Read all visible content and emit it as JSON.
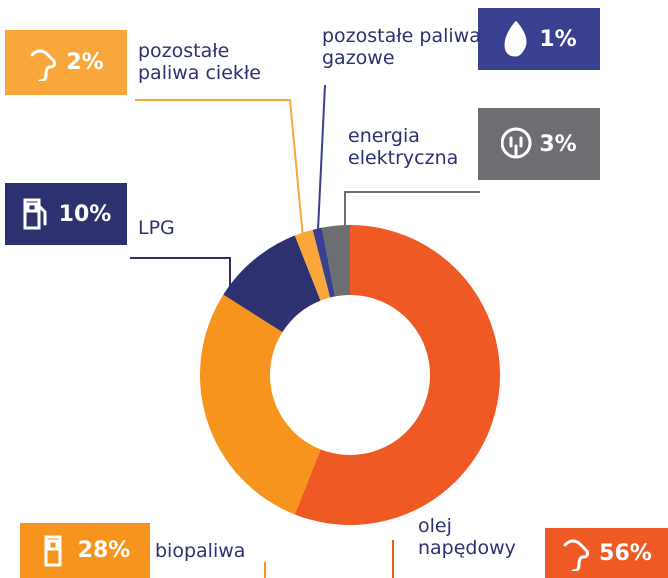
{
  "chart_data": {
    "type": "donut",
    "categories": [
      "olej napędowy",
      "biopaliwa",
      "LPG",
      "pozostałe paliwa ciekłe",
      "pozostałe paliwa gazowe",
      "energia elektryczna"
    ],
    "values": [
      56,
      28,
      10,
      2,
      1,
      3
    ],
    "value_labels": [
      "56%",
      "28%",
      "10%",
      "2%",
      "1%",
      "3%"
    ],
    "colors": [
      "#ef5a24",
      "#f7941d",
      "#2e3170",
      "#f9a63a",
      "#3a3f8f",
      "#6d6e71"
    ]
  }
}
